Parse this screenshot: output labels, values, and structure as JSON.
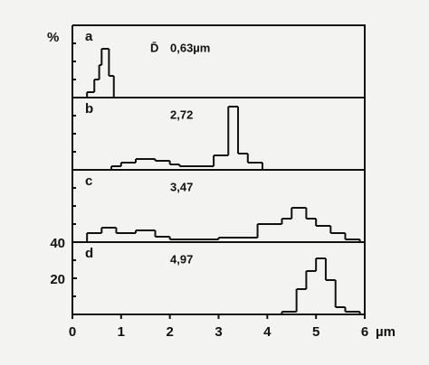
{
  "chart_data": [
    {
      "type": "histogram",
      "label": "a",
      "ylabel": "%",
      "mean_symbol": "D̄",
      "annotation": "0,63µm",
      "bins": [
        0.3,
        0.45,
        0.55,
        0.6,
        0.75,
        0.85
      ],
      "counts": [
        3,
        10,
        18,
        27,
        12
      ],
      "xlim": [
        0,
        6
      ],
      "ylim": [
        0,
        40
      ],
      "color": "#111111"
    },
    {
      "type": "histogram",
      "label": "b",
      "annotation": "2,72",
      "bins": [
        0.8,
        1.0,
        1.3,
        1.7,
        2.0,
        2.2,
        2.9,
        3.2,
        3.4,
        3.6,
        3.9
      ],
      "counts": [
        2,
        4,
        6,
        5,
        3,
        2,
        8,
        35,
        9,
        4
      ],
      "xlim": [
        0,
        6
      ],
      "ylim": [
        0,
        40
      ],
      "color": "#111111"
    },
    {
      "type": "histogram",
      "label": "c",
      "annotation": "3,47",
      "bins": [
        0.3,
        0.6,
        0.9,
        1.3,
        1.7,
        2.0,
        3.0,
        3.8,
        4.3,
        4.5,
        4.8,
        5.0,
        5.3,
        5.6,
        5.9
      ],
      "counts": [
        5,
        8,
        5,
        6.5,
        3,
        1.5,
        2.5,
        10,
        13,
        19,
        13,
        9,
        5,
        1.5
      ],
      "xlim": [
        0,
        6
      ],
      "ylim": [
        0,
        40
      ],
      "color": "#111111"
    },
    {
      "type": "histogram",
      "label": "d",
      "annotation": "4,97",
      "bins": [
        4.3,
        4.6,
        4.8,
        5.0,
        5.2,
        5.4,
        5.6,
        5.9
      ],
      "counts": [
        1.5,
        14,
        24,
        31,
        19,
        4,
        1.5
      ],
      "xlim": [
        0,
        6
      ],
      "ylim": [
        0,
        40
      ],
      "yticks": [
        20,
        40
      ],
      "xticks": [
        0,
        1,
        2,
        3,
        4,
        5,
        6
      ],
      "xlabel": "µm",
      "color": "#111111"
    }
  ]
}
